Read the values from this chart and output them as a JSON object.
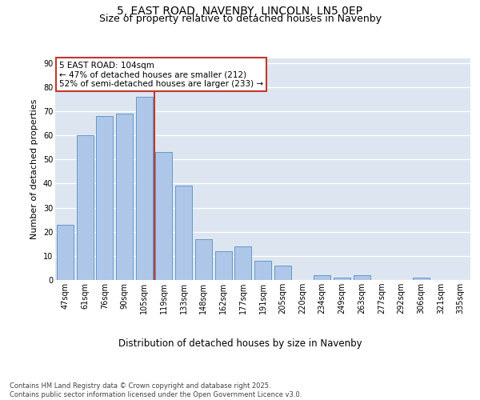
{
  "title1": "5, EAST ROAD, NAVENBY, LINCOLN, LN5 0EP",
  "title2": "Size of property relative to detached houses in Navenby",
  "xlabel": "Distribution of detached houses by size in Navenby",
  "ylabel": "Number of detached properties",
  "categories": [
    "47sqm",
    "61sqm",
    "76sqm",
    "90sqm",
    "105sqm",
    "119sqm",
    "133sqm",
    "148sqm",
    "162sqm",
    "177sqm",
    "191sqm",
    "205sqm",
    "220sqm",
    "234sqm",
    "249sqm",
    "263sqm",
    "277sqm",
    "292sqm",
    "306sqm",
    "321sqm",
    "335sqm"
  ],
  "values": [
    23,
    60,
    68,
    69,
    76,
    53,
    39,
    17,
    12,
    14,
    8,
    6,
    0,
    2,
    1,
    2,
    0,
    0,
    1,
    0,
    0
  ],
  "bar_color": "#aec6e8",
  "bar_edge_color": "#6699cc",
  "vline_index": 4,
  "vline_color": "#c0392b",
  "annotation_text": "5 EAST ROAD: 104sqm\n← 47% of detached houses are smaller (212)\n52% of semi-detached houses are larger (233) →",
  "annotation_box_color": "#c0392b",
  "ylim": [
    0,
    92
  ],
  "yticks": [
    0,
    10,
    20,
    30,
    40,
    50,
    60,
    70,
    80,
    90
  ],
  "background_color": "#dde6f0",
  "footer_text": "Contains HM Land Registry data © Crown copyright and database right 2025.\nContains public sector information licensed under the Open Government Licence v3.0.",
  "title_fontsize": 10,
  "subtitle_fontsize": 9,
  "tick_fontsize": 7,
  "xlabel_fontsize": 8.5,
  "ylabel_fontsize": 8,
  "annotation_fontsize": 7.5
}
